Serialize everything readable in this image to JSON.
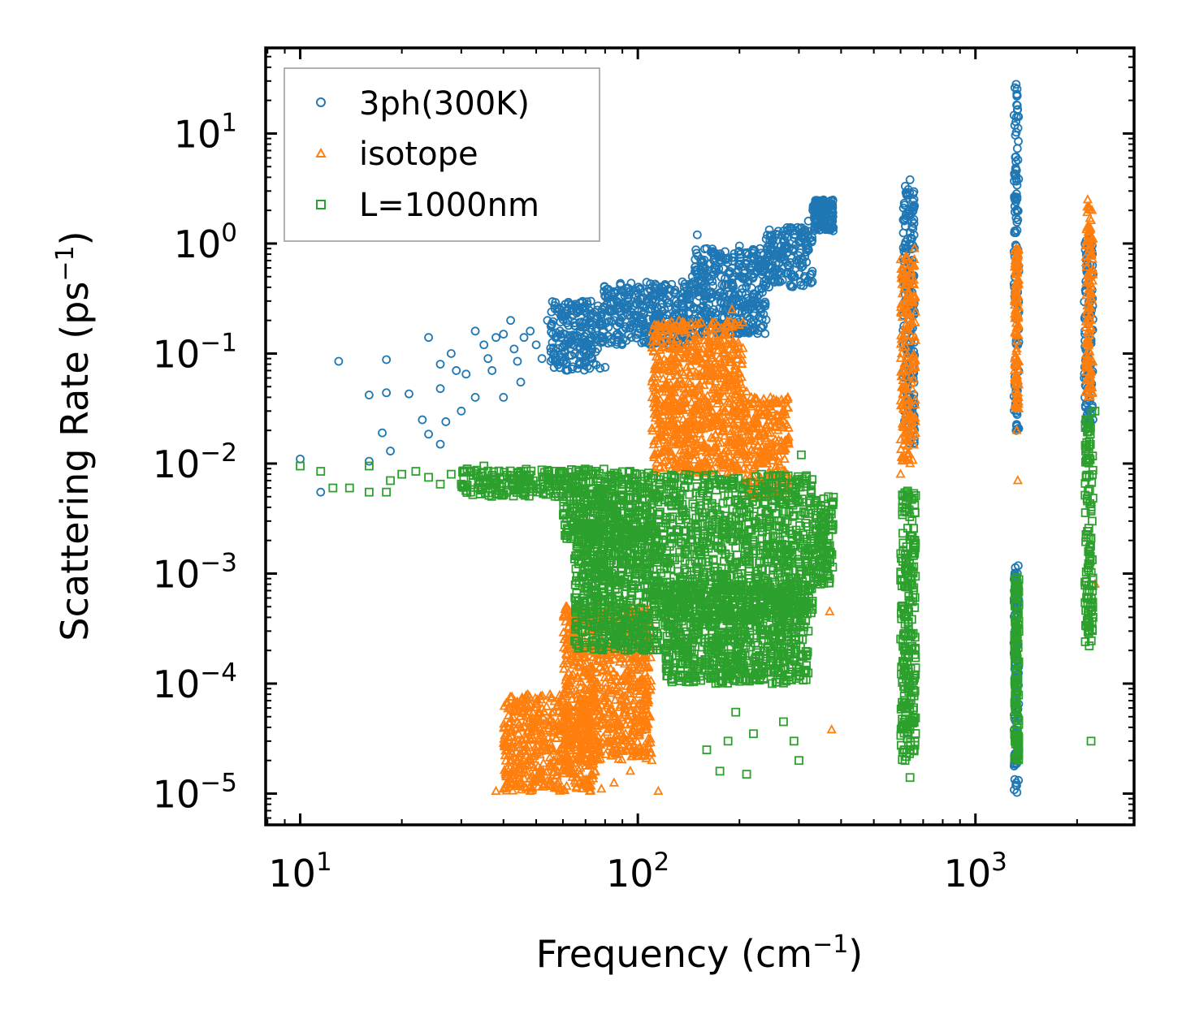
{
  "chart_data": {
    "type": "scatter",
    "title": "",
    "xlabel": "Frequency (cm",
    "xlabel_sup": "−1",
    "xlabel_end": ")",
    "ylabel": "Scattering Rate (ps",
    "ylabel_sup": "−1",
    "ylabel_end": ")",
    "xscale": "log",
    "yscale": "log",
    "xlim": [
      7.9,
      2950
    ],
    "ylim": [
      5.2e-06,
      60
    ],
    "x_ticks": [
      {
        "base": "10",
        "exp": "1",
        "value": 10
      },
      {
        "base": "10",
        "exp": "2",
        "value": 100
      },
      {
        "base": "10",
        "exp": "3",
        "value": 1000
      }
    ],
    "y_ticks": [
      {
        "base": "10",
        "exp": "1",
        "value": 10
      },
      {
        "base": "10",
        "exp": "0",
        "value": 1
      },
      {
        "base": "10",
        "exp": "−1",
        "value": 0.1
      },
      {
        "base": "10",
        "exp": "−2",
        "value": 0.01
      },
      {
        "base": "10",
        "exp": "−3",
        "value": 0.001
      },
      {
        "base": "10",
        "exp": "−4",
        "value": 0.0001
      },
      {
        "base": "10",
        "exp": "−5",
        "value": 1e-05
      }
    ],
    "legend_position": "top-left",
    "series": [
      {
        "name": "3ph(300K)",
        "marker": "circle",
        "color": "#1f77b4",
        "points": [
          [
            10,
            0.011
          ],
          [
            11.5,
            0.0055
          ],
          [
            13,
            0.085
          ],
          [
            16,
            0.042
          ],
          [
            16,
            0.0105
          ],
          [
            18,
            0.088
          ],
          [
            18,
            0.044
          ],
          [
            17.5,
            0.019
          ],
          [
            18.5,
            0.013
          ],
          [
            21,
            0.043
          ],
          [
            23,
            0.025
          ],
          [
            24,
            0.14
          ],
          [
            24,
            0.0185
          ],
          [
            26,
            0.08
          ],
          [
            26,
            0.048
          ],
          [
            26,
            0.015
          ],
          [
            27,
            0.024
          ],
          [
            28,
            0.1
          ],
          [
            29,
            0.07
          ],
          [
            30,
            0.03
          ],
          [
            31,
            0.065
          ],
          [
            33,
            0.16
          ],
          [
            33,
            0.04
          ],
          [
            35,
            0.12
          ],
          [
            36,
            0.09
          ],
          [
            37,
            0.07
          ],
          [
            38,
            0.14
          ],
          [
            40,
            0.04
          ],
          [
            40,
            0.15
          ],
          [
            42,
            0.2
          ],
          [
            43,
            0.11
          ],
          [
            44,
            0.085
          ],
          [
            45,
            0.055
          ],
          [
            46,
            0.14
          ],
          [
            48,
            0.16
          ],
          [
            50,
            0.12
          ],
          [
            52,
            0.09
          ],
          [
            54,
            0.2
          ],
          [
            56,
            0.15
          ],
          [
            58,
            0.24
          ],
          [
            62,
            0.2
          ],
          [
            65,
            0.1
          ],
          [
            70,
            0.12
          ],
          [
            75,
            0.16
          ],
          [
            80,
            0.075
          ],
          [
            85,
            0.2
          ],
          [
            90,
            0.28
          ],
          [
            95,
            0.17
          ],
          [
            100,
            0.22
          ],
          [
            110,
            0.3
          ],
          [
            115,
            0.13
          ],
          [
            120,
            0.25
          ],
          [
            125,
            0.38
          ],
          [
            130,
            0.3
          ],
          [
            135,
            0.2
          ],
          [
            140,
            0.35
          ],
          [
            145,
            0.5
          ],
          [
            150,
            1.2
          ],
          [
            160,
            0.9
          ],
          [
            170,
            0.8
          ],
          [
            180,
            0.35
          ],
          [
            190,
            0.6
          ],
          [
            200,
            0.95
          ],
          [
            210,
            0.7
          ],
          [
            220,
            0.5
          ],
          [
            230,
            0.9
          ],
          [
            240,
            1.1
          ],
          [
            250,
            0.6
          ],
          [
            260,
            0.8
          ],
          [
            270,
            1.3
          ],
          [
            280,
            0.9
          ],
          [
            290,
            1.2
          ],
          [
            300,
            0.7
          ],
          [
            310,
            1.1
          ],
          [
            320,
            1.6
          ],
          [
            330,
            2.0
          ],
          [
            340,
            2.2
          ],
          [
            350,
            2.4
          ],
          [
            360,
            1.9
          ],
          [
            370,
            2.3
          ],
          [
            640,
            3.8
          ],
          [
            660,
            2.2
          ],
          [
            620,
            0.28
          ],
          [
            1320,
            28
          ],
          [
            1330,
            18
          ],
          [
            1340,
            8.5
          ],
          [
            1310,
            2.5
          ],
          [
            1325,
            0.8
          ],
          [
            1335,
            0.12
          ],
          [
            1320,
            0.02
          ],
          [
            2180,
            1.1
          ],
          [
            2220,
            0.8
          ],
          [
            2150,
            0.2
          ],
          [
            2200,
            0.05
          ]
        ],
        "clusters": [
          {
            "x": [
              55,
              78
            ],
            "y": [
              0.07,
              0.3
            ]
          },
          {
            "x": [
              78,
              145
            ],
            "y": [
              0.12,
              0.45
            ]
          },
          {
            "x": [
              145,
              240
            ],
            "y": [
              0.15,
              0.9
            ]
          },
          {
            "x": [
              240,
              330
            ],
            "y": [
              0.4,
              1.4
            ]
          },
          {
            "x": [
              330,
              380
            ],
            "y": [
              1.3,
              2.5
            ]
          },
          {
            "x": [
              610,
              660
            ],
            "y": [
              0.015,
              3.5
            ]
          },
          {
            "x": [
              1300,
              1345
            ],
            "y": [
              0.02,
              27
            ]
          },
          {
            "x": [
              1300,
              1345
            ],
            "y": [
              1e-05,
              0.0012
            ]
          },
          {
            "x": [
              2100,
              2230
            ],
            "y": [
              0.02,
              1.1
            ]
          }
        ]
      },
      {
        "name": "isotope",
        "marker": "triangle",
        "color": "#ff7f0e",
        "points": [
          [
            38,
            1.05e-05
          ],
          [
            40,
            1.1e-05
          ],
          [
            45,
            1.3e-05
          ],
          [
            48,
            1.05e-05
          ],
          [
            50,
            1.4e-05
          ],
          [
            55,
            1.2e-05
          ],
          [
            60,
            2e-05
          ],
          [
            65,
            1.3e-05
          ],
          [
            72,
            1.05e-05
          ],
          [
            78,
            1.1e-05
          ],
          [
            85,
            1.25e-05
          ],
          [
            95,
            1.6e-05
          ],
          [
            110,
            2e-05
          ],
          [
            115,
            1.05e-05
          ],
          [
            120,
            0.03
          ],
          [
            130,
            0.05
          ],
          [
            140,
            0.012
          ],
          [
            150,
            0.1
          ],
          [
            160,
            0.08
          ],
          [
            170,
            0.12
          ],
          [
            180,
            0.15
          ],
          [
            190,
            0.25
          ],
          [
            200,
            0.04
          ],
          [
            210,
            0.045
          ],
          [
            220,
            0.035
          ],
          [
            230,
            0.012
          ],
          [
            240,
            0.03
          ],
          [
            260,
            0.02
          ],
          [
            280,
            0.015
          ],
          [
            300,
            0.0005
          ],
          [
            370,
            0.00045
          ],
          [
            375,
            3.8e-05
          ],
          [
            620,
            0.75
          ],
          [
            600,
            0.008
          ],
          [
            640,
            0.01
          ],
          [
            660,
            0.9
          ],
          [
            1320,
            0.9
          ],
          [
            1330,
            0.4
          ],
          [
            1325,
            0.02
          ],
          [
            1335,
            0.007
          ],
          [
            2150,
            2.5
          ],
          [
            2170,
            0.2
          ],
          [
            2200,
            0.07
          ],
          [
            2260,
            0.0008
          ]
        ],
        "clusters": [
          {
            "x": [
              40,
              75
            ],
            "y": [
              1.05e-05,
              8e-05
            ]
          },
          {
            "x": [
              60,
              110
            ],
            "y": [
              2e-05,
              0.0005
            ]
          },
          {
            "x": [
              110,
              205
            ],
            "y": [
              0.008,
              0.2
            ]
          },
          {
            "x": [
              205,
              280
            ],
            "y": [
              0.005,
              0.04
            ]
          },
          {
            "x": [
              600,
              665
            ],
            "y": [
              0.01,
              0.8
            ]
          },
          {
            "x": [
              1305,
              1345
            ],
            "y": [
              0.03,
              0.9
            ]
          },
          {
            "x": [
              2120,
              2230
            ],
            "y": [
              0.04,
              2.3
            ]
          }
        ]
      },
      {
        "name": "L=1000nm",
        "marker": "square",
        "color": "#2ca02c",
        "points": [
          [
            10,
            0.0095
          ],
          [
            11.5,
            0.0085
          ],
          [
            12.5,
            0.006
          ],
          [
            14,
            0.006
          ],
          [
            16,
            0.0055
          ],
          [
            16,
            0.0095
          ],
          [
            18,
            0.0055
          ],
          [
            18.5,
            0.007
          ],
          [
            20,
            0.008
          ],
          [
            22,
            0.0085
          ],
          [
            24,
            0.0075
          ],
          [
            26,
            0.0065
          ],
          [
            28,
            0.008
          ],
          [
            30,
            0.0065
          ],
          [
            32,
            0.0055
          ],
          [
            35,
            0.0095
          ],
          [
            40,
            0.0075
          ],
          [
            45,
            0.0085
          ],
          [
            50,
            0.006
          ],
          [
            150,
            0.0007
          ],
          [
            160,
            2.5e-05
          ],
          [
            170,
            0.00012
          ],
          [
            175,
            1.6e-05
          ],
          [
            185,
            3e-05
          ],
          [
            195,
            5.5e-05
          ],
          [
            210,
            1.5e-05
          ],
          [
            220,
            3.5e-05
          ],
          [
            250,
            0.0001
          ],
          [
            270,
            4.5e-05
          ],
          [
            290,
            3e-05
          ],
          [
            300,
            2e-05
          ],
          [
            305,
            0.012
          ],
          [
            370,
            0.0009
          ],
          [
            615,
            2.5e-05
          ],
          [
            640,
            1.4e-05
          ],
          [
            2200,
            3e-05
          ],
          [
            2260,
            0.03
          ]
        ],
        "clusters": [
          {
            "x": [
              30,
              60
            ],
            "y": [
              0.005,
              0.009
            ]
          },
          {
            "x": [
              60,
              110
            ],
            "y": [
              0.002,
              0.009
            ]
          },
          {
            "x": [
              65,
              115
            ],
            "y": [
              0.0002,
              0.003
            ]
          },
          {
            "x": [
              110,
              330
            ],
            "y": [
              0.0004,
              0.008
            ]
          },
          {
            "x": [
              120,
              320
            ],
            "y": [
              0.0001,
              0.0008
            ]
          },
          {
            "x": [
              330,
              380
            ],
            "y": [
              0.0008,
              0.005
            ]
          },
          {
            "x": [
              600,
              665
            ],
            "y": [
              2e-05,
              0.006
            ]
          },
          {
            "x": [
              1305,
              1345
            ],
            "y": [
              2e-05,
              0.001
            ]
          },
          {
            "x": [
              2110,
              2230
            ],
            "y": [
              0.0002,
              0.03
            ]
          }
        ]
      }
    ]
  }
}
